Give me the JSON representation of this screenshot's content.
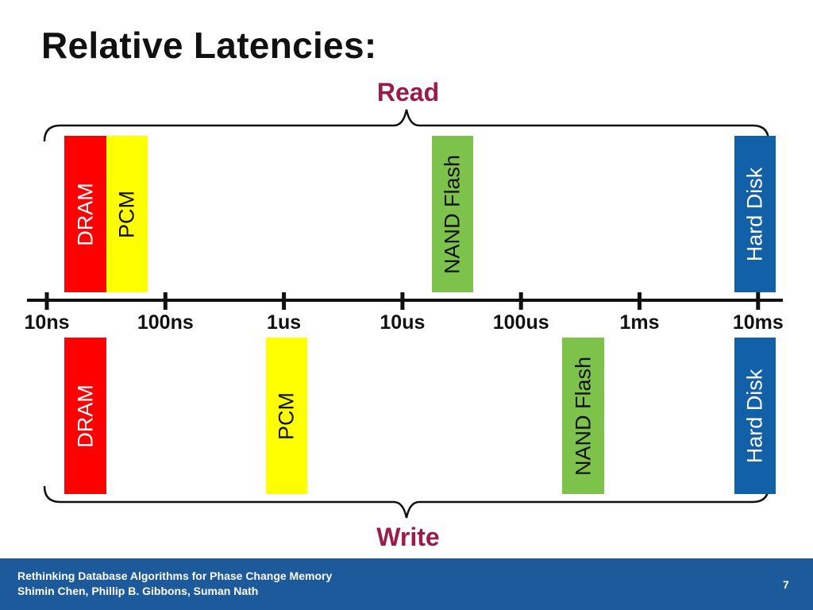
{
  "slide": {
    "title": "Relative Latencies:",
    "read_label": "Read",
    "write_label": "Write"
  },
  "axis": {
    "scale": "log",
    "ticks": [
      "10ns",
      "100ns",
      "1us",
      "10us",
      "100us",
      "1ms",
      "10ms"
    ]
  },
  "read": {
    "bars": [
      {
        "id": "dram",
        "label": "DRAM",
        "color": "#ff0000",
        "text_color": "#ffffff",
        "tick_start": 0.15,
        "tick_end": 0.5
      },
      {
        "id": "pcm",
        "label": "PCM",
        "color": "#ffff00",
        "text_color": "#111111",
        "tick_start": 0.5,
        "tick_end": 0.85
      },
      {
        "id": "nand-flash",
        "label": "NAND Flash",
        "color": "#7dc24b",
        "text_color": "#111111",
        "tick_start": 3.25,
        "tick_end": 3.6
      },
      {
        "id": "hard-disk",
        "label": "Hard Disk",
        "color": "#1160a8",
        "text_color": "#ffffff",
        "tick_start": 5.8,
        "tick_end": 6.15
      }
    ]
  },
  "write": {
    "bars": [
      {
        "id": "dram",
        "label": "DRAM",
        "color": "#ff0000",
        "text_color": "#ffffff",
        "tick_start": 0.15,
        "tick_end": 0.5
      },
      {
        "id": "pcm",
        "label": "PCM",
        "color": "#ffff00",
        "text_color": "#111111",
        "tick_start": 1.85,
        "tick_end": 2.2
      },
      {
        "id": "nand-flash",
        "label": "NAND Flash",
        "color": "#7dc24b",
        "text_color": "#111111",
        "tick_start": 4.35,
        "tick_end": 4.7
      },
      {
        "id": "hard-disk",
        "label": "Hard Disk",
        "color": "#1160a8",
        "text_color": "#ffffff",
        "tick_start": 5.8,
        "tick_end": 6.15
      }
    ]
  },
  "footer": {
    "line1": "Rethinking Database Algorithms for Phase Change Memory",
    "line2": "Shimin Chen, Phillip B. Gibbons, Suman Nath",
    "page_number": "7"
  }
}
